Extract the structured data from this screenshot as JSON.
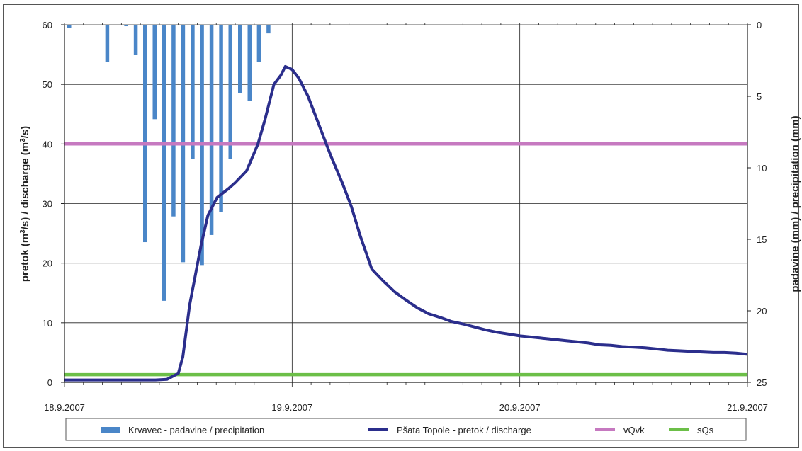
{
  "chart_data": {
    "type": "line",
    "title": "",
    "left_axis": {
      "label_parts": [
        "pretok (m",
        "3",
        "/s) / discharge (m",
        "3",
        "/s)"
      ],
      "ylim": [
        0,
        60
      ],
      "ticks": [
        "0",
        "10",
        "20",
        "30",
        "40",
        "50",
        "60"
      ]
    },
    "right_axis": {
      "label": "padavine (mm) / precipitation (mm)",
      "ylim": [
        0,
        25
      ],
      "inverted": true,
      "ticks": [
        "0",
        "5",
        "10",
        "15",
        "20",
        "25"
      ]
    },
    "x_axis": {
      "range_days": [
        0,
        3
      ],
      "ticks": [
        "18.9.2007",
        "19.9.2007",
        "20.9.2007",
        "21.9.2007"
      ]
    },
    "grid": true,
    "legend_position": "bottom",
    "series": [
      {
        "name": "Krvavec - padavine / precipitation",
        "kind": "bar",
        "axis": "right",
        "color": "#4a86c8",
        "x": [
          0.021,
          0.188,
          0.271,
          0.313,
          0.354,
          0.396,
          0.438,
          0.479,
          0.521,
          0.563,
          0.604,
          0.646,
          0.688,
          0.729,
          0.771,
          0.813,
          0.854,
          0.896,
          0.938
        ],
        "values": [
          0.2,
          2.6,
          0.1,
          2.1,
          15.2,
          6.6,
          19.3,
          13.4,
          16.6,
          9.4,
          16.8,
          14.7,
          13.1,
          9.4,
          4.8,
          5.3,
          2.6,
          0.6,
          0.0
        ]
      },
      {
        "name": "Pšata Topole - pretok / discharge",
        "kind": "line",
        "axis": "left",
        "color": "#2b2e8c",
        "x": [
          0,
          0.1,
          0.2,
          0.3,
          0.35,
          0.4,
          0.45,
          0.5,
          0.52,
          0.55,
          0.6,
          0.63,
          0.67,
          0.72,
          0.75,
          0.8,
          0.85,
          0.88,
          0.92,
          0.95,
          0.97,
          1.0,
          1.03,
          1.07,
          1.12,
          1.17,
          1.22,
          1.26,
          1.3,
          1.35,
          1.4,
          1.45,
          1.5,
          1.55,
          1.6,
          1.65,
          1.7,
          1.75,
          1.8,
          1.85,
          1.9,
          1.95,
          2.0,
          2.05,
          2.1,
          2.15,
          2.2,
          2.25,
          2.3,
          2.35,
          2.4,
          2.45,
          2.5,
          2.55,
          2.6,
          2.65,
          2.7,
          2.75,
          2.8,
          2.85,
          2.9,
          2.95,
          3.0
        ],
        "values": [
          0.4,
          0.4,
          0.4,
          0.4,
          0.4,
          0.4,
          0.5,
          1.5,
          4.3,
          13,
          23,
          28,
          31,
          32.5,
          33.5,
          35.5,
          40,
          44,
          50,
          51.5,
          53,
          52.5,
          51,
          48,
          43,
          38,
          33.5,
          29.5,
          24.5,
          19,
          17,
          15.2,
          13.8,
          12.5,
          11.5,
          10.9,
          10.2,
          9.8,
          9.3,
          8.8,
          8.4,
          8.1,
          7.8,
          7.6,
          7.4,
          7.2,
          7.0,
          6.8,
          6.6,
          6.3,
          6.2,
          6.0,
          5.9,
          5.8,
          5.6,
          5.4,
          5.3,
          5.2,
          5.1,
          5.0,
          5.0,
          4.9,
          4.7
        ]
      },
      {
        "name": "vQvk",
        "kind": "line",
        "axis": "left",
        "color": "#c679c0",
        "x": [
          0,
          3
        ],
        "values": [
          40,
          40
        ]
      },
      {
        "name": "sQs",
        "kind": "line",
        "axis": "left",
        "color": "#6cbf48",
        "x": [
          0,
          3
        ],
        "values": [
          1.3,
          1.3
        ]
      }
    ]
  }
}
